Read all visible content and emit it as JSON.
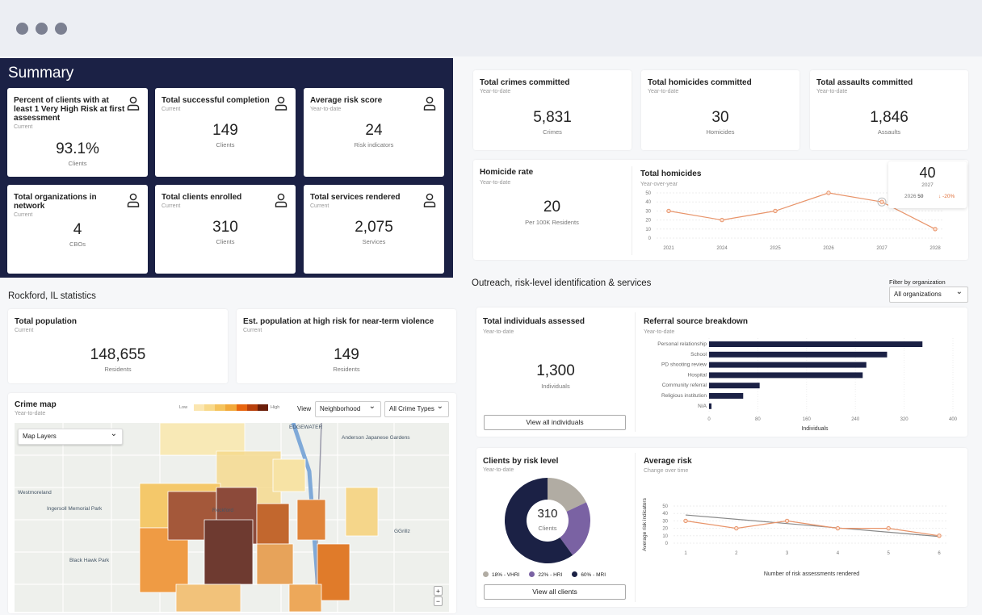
{
  "window": {
    "dots": 3
  },
  "summary": {
    "title": "Summary",
    "cards": [
      {
        "title": "Percent of clients with at least 1 Very High Risk at first assessment",
        "sub": "Current",
        "value": "93.1%",
        "unit": "Clients",
        "icon": "person-icon"
      },
      {
        "title": "Total successful completion",
        "sub": "Current",
        "value": "149",
        "unit": "Clients",
        "icon": "person-icon"
      },
      {
        "title": "Average risk score",
        "sub": "Year-to-date",
        "value": "24",
        "unit": "Risk indicators",
        "icon": "person-icon"
      },
      {
        "title": "Total organizations in network",
        "sub": "Current",
        "value": "4",
        "unit": "CBOs",
        "icon": "person-icon"
      },
      {
        "title": "Total clients enrolled",
        "sub": "Current",
        "value": "310",
        "unit": "Clients",
        "icon": "person-icon"
      },
      {
        "title": "Total services rendered",
        "sub": "Current",
        "value": "2,075",
        "unit": "Services",
        "icon": "person-icon"
      }
    ]
  },
  "crime": {
    "cards": [
      {
        "title": "Total crimes committed",
        "sub": "Year-to-date",
        "value": "5,831",
        "unit": "Crimes"
      },
      {
        "title": "Total homicides committed",
        "sub": "Year-to-date",
        "value": "30",
        "unit": "Homicides"
      },
      {
        "title": "Total assaults committed",
        "sub": "Year-to-date",
        "value": "1,846",
        "unit": "Assaults"
      }
    ],
    "rate": {
      "title": "Homicide rate",
      "sub": "Year-to-date",
      "value": "20",
      "unit": "Per 100K Residents"
    },
    "tooltip": {
      "value": "40",
      "year": "2027",
      "prev": "2026",
      "prev_value": "50",
      "change": "↓ -20%"
    }
  },
  "stats": {
    "title": "Rockford, IL statistics",
    "cards": [
      {
        "title": "Total population",
        "sub": "Current",
        "value": "148,655",
        "unit": "Residents"
      },
      {
        "title": "Est. population at high risk for near-term violence",
        "sub": "Current",
        "value": "149",
        "unit": "Residents"
      }
    ]
  },
  "map": {
    "title": "Crime map",
    "sub": "Year-to-date",
    "legend_low": "Low",
    "legend_high": "High",
    "legend_colors": [
      "#fbe6b0",
      "#f8d98a",
      "#f5c35c",
      "#f2a93a",
      "#e8650f",
      "#b8400c",
      "#6b1e0a"
    ],
    "view_label": "View",
    "view_value": "Neighborhood",
    "type_value": "All Crime Types",
    "layers": "Map Layers",
    "labels": [
      "Westmoreland",
      "Ingersoll Memorial Park",
      "Black Hawk Park",
      "Anderson Japanese Gardens",
      "EDGEWATER",
      "GGrillz",
      "Rockford"
    ],
    "zoom_in": "+",
    "zoom_out": "−"
  },
  "outreach": {
    "title": "Outreach, risk-level identification & services",
    "filter_label": "Filter by organization",
    "filter_value": "All organizations",
    "assessed": {
      "title": "Total individuals assessed",
      "sub": "Year-to-date",
      "value": "1,300",
      "unit": "Individuals",
      "button": "View all individuals"
    },
    "clients": {
      "title": "Clients by risk level",
      "sub": "Year-to-date",
      "value": "310",
      "unit": "Clients",
      "button": "View all clients",
      "legend": [
        "18% - VHRI",
        "22% - HRI",
        "60% - MRI"
      ]
    }
  },
  "chart_data": [
    {
      "type": "line",
      "title": "Total homicides",
      "subtitle": "Year-over-year",
      "categories": [
        "2021",
        "2024",
        "2025",
        "2026",
        "2027",
        "2028"
      ],
      "values": [
        30,
        20,
        30,
        50,
        40,
        10
      ],
      "ylim": [
        0,
        50
      ],
      "yticks": [
        0,
        10,
        20,
        30,
        40,
        50
      ],
      "color": "#e8946a",
      "highlight": "2027"
    },
    {
      "type": "bar",
      "orientation": "horizontal",
      "title": "Referral source breakdown",
      "subtitle": "Year-to-date",
      "categories": [
        "Personal relationship",
        "School",
        "PD shooting review",
        "Hospital",
        "Community referral",
        "Religious institution",
        "N/A"
      ],
      "values": [
        350,
        292,
        258,
        252,
        83,
        56,
        4
      ],
      "xlabel": "Individuals",
      "xlim": [
        0,
        400
      ],
      "xticks": [
        0,
        80,
        160,
        240,
        320,
        400
      ],
      "color": "#1b2145"
    },
    {
      "type": "pie",
      "donut": true,
      "title": "Clients by risk level",
      "categories": [
        "VHRI",
        "HRI",
        "MRI"
      ],
      "values": [
        18,
        22,
        60
      ],
      "colors": [
        "#b1aca3",
        "#7a62a3",
        "#1b2145"
      ]
    },
    {
      "type": "line",
      "title": "Average risk",
      "subtitle": "Change over time",
      "categories": [
        "1",
        "2",
        "3",
        "4",
        "5",
        "6"
      ],
      "series": [
        {
          "values": [
            30,
            20,
            30,
            20,
            20,
            10
          ],
          "color": "#e8946a"
        },
        {
          "values": [
            38,
            32.2,
            26.4,
            20.6,
            14.8,
            9
          ],
          "color": "#888888"
        }
      ],
      "xlabel": "Number of risk assessments rendered",
      "ylabel": "Average risk indicators",
      "ylim": [
        0,
        50
      ],
      "yticks": [
        0,
        10,
        20,
        30,
        40,
        50
      ]
    }
  ]
}
